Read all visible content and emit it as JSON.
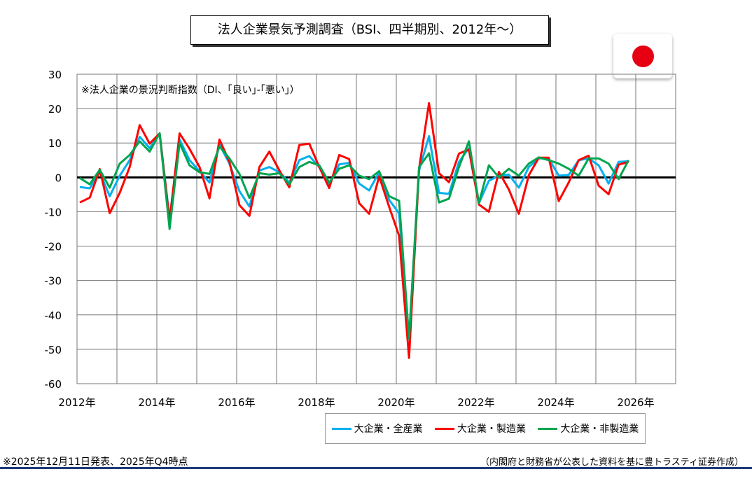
{
  "title": "法人企業景気予測調査（BSI、四半期別、2012年～）",
  "flag_icon": "japan-flag",
  "note": "※法人企業の景況判断指数（DI、｢良い｣-｢悪い｣）",
  "footer_left": "※2025年12月11日発表、2025年Q4時点",
  "footer_right": "（内閣府と財務省が公表した資料を基に豊トラスティ証券作成）",
  "chart_data": {
    "type": "line",
    "title": "法人企業景気予測調査（BSI、四半期別、2012年～）",
    "xlabel": "",
    "ylabel": "",
    "ylim": [
      -60,
      30
    ],
    "xlim": [
      2012,
      2027
    ],
    "yticks": [
      "30",
      "20",
      "10",
      "0",
      "-10",
      "-20",
      "-30",
      "-40",
      "-50",
      "-60"
    ],
    "xticks": [
      "2012年",
      "2014年",
      "2016年",
      "2018年",
      "2020年",
      "2022年",
      "2024年",
      "2026年"
    ],
    "x_start": "2012Q1",
    "x_step": "quarter",
    "grid": true,
    "legend": "bottom-right",
    "series": [
      {
        "name": "大企業・全産業",
        "color": "#00b0f0",
        "values": [
          -2.8,
          -3.2,
          1.5,
          -5.5,
          0.5,
          5,
          11.8,
          8.5,
          12.8,
          -12,
          11,
          5,
          1.8,
          -1.5,
          9.5,
          4,
          -4,
          -8.5,
          2,
          3,
          1.5,
          -1.5,
          5,
          6.2,
          3,
          -2,
          3.8,
          4.2,
          -1.8,
          -3.8,
          1.5,
          -6.5,
          -10.5,
          -47,
          2,
          12,
          -4.5,
          -4.8,
          4.5,
          8.5,
          -7.5,
          -1,
          0.5,
          0.8,
          -3,
          3,
          5.5,
          5.5,
          0.5,
          0.7,
          5,
          5.5,
          3.5,
          -1.8,
          4.5,
          4.7
        ]
      },
      {
        "name": "大企業・製造業",
        "color": "#ff0000",
        "values": [
          -7.3,
          -5.9,
          2.4,
          -10.4,
          -4.5,
          3,
          15.2,
          9.8,
          12.8,
          -12.7,
          12.8,
          8.3,
          3,
          -6.1,
          11,
          4.5,
          -8.1,
          -11.2,
          3,
          7.5,
          2,
          -2.9,
          9.4,
          9.8,
          3,
          -3.1,
          6.5,
          5.3,
          -7.5,
          -10.6,
          0.3,
          -8.5,
          -17,
          -52.5,
          2.5,
          21.6,
          1.2,
          -1.4,
          6.9,
          8.1,
          -7.9,
          -10,
          1.6,
          -3.5,
          -10.6,
          0.6,
          5.7,
          5.7,
          -6.9,
          -1.5,
          5,
          6.3,
          -2.4,
          -4.9,
          3.7,
          4.5
        ]
      },
      {
        "name": "大企業・非製造業",
        "color": "#00a550",
        "values": [
          -0.2,
          -2,
          2.2,
          -3,
          4,
          6.5,
          10.5,
          7.5,
          12.8,
          -15,
          10,
          3.5,
          1.5,
          1,
          9,
          5.5,
          1,
          -6,
          1.2,
          0.8,
          1.2,
          -2,
          3,
          4.5,
          3.5,
          -1.5,
          2.5,
          3.5,
          0.5,
          -0.5,
          1.8,
          -5.5,
          -6.8,
          -47,
          3,
          7,
          -7.3,
          -6.2,
          3,
          10.5,
          -7.5,
          3.5,
          0,
          2.5,
          0.5,
          4,
          5.8,
          5,
          4,
          2.5,
          0.5,
          5.5,
          5.5,
          4,
          -0.5,
          5
        ]
      }
    ]
  }
}
